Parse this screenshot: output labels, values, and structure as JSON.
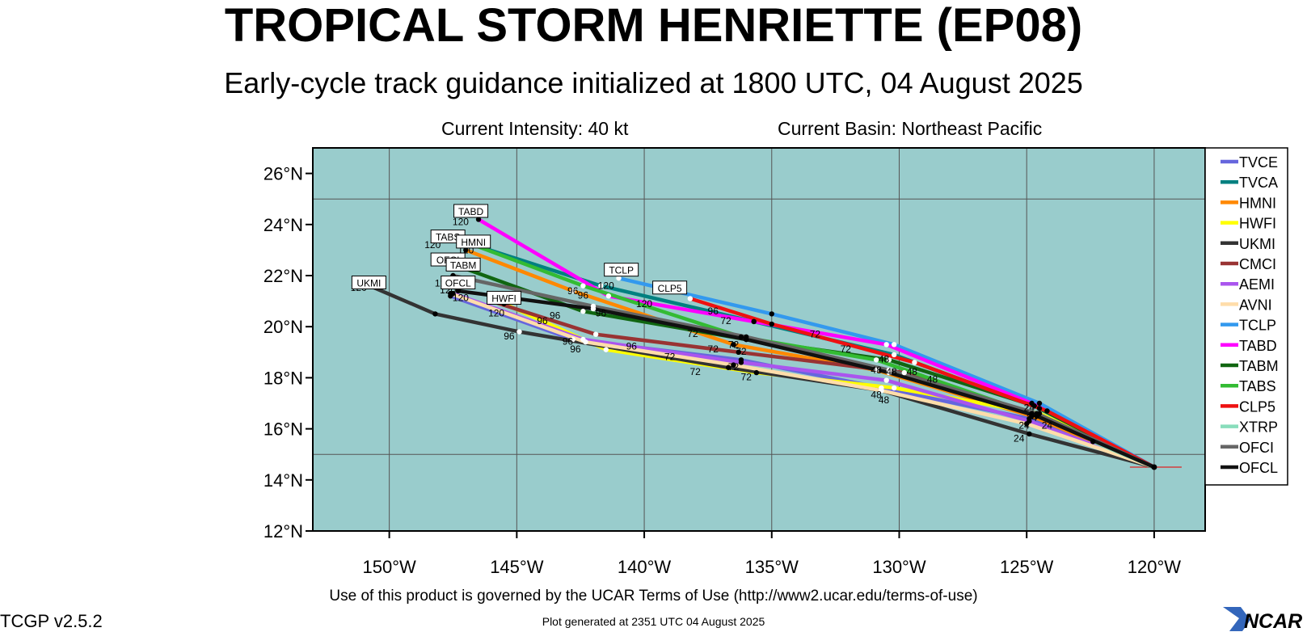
{
  "title": "TROPICAL STORM HENRIETTE (EP08)",
  "subtitle": "Early-cycle track guidance initialized at 1800 UTC, 04 August 2025",
  "current_intensity": "Current Intensity: 40 kt",
  "current_basin": "Current Basin: Northeast Pacific",
  "footer_terms": "Use of this product is governed by the UCAR Terms of Use (http://www2.ucar.edu/terms-of-use)",
  "version": "TCGP v2.5.2",
  "generated": "Plot generated at 2351 UTC   04 August 2025",
  "logo_text": "NCAR",
  "colors": {
    "ocean": "#99cccc",
    "grid": "#555555",
    "start_line": "#dd2222"
  },
  "chart_data": {
    "type": "line",
    "title": "TROPICAL STORM HENRIETTE (EP08)",
    "xlabel": "",
    "ylabel": "",
    "xlim": [
      -153,
      -118
    ],
    "ylim": [
      12,
      27
    ],
    "grid": true,
    "legend_position": "right",
    "x_ticks": [
      {
        "value": -150,
        "label": "150°W"
      },
      {
        "value": -145,
        "label": "145°W"
      },
      {
        "value": -140,
        "label": "140°W"
      },
      {
        "value": -135,
        "label": "135°W"
      },
      {
        "value": -130,
        "label": "130°W"
      },
      {
        "value": -125,
        "label": "125°W"
      },
      {
        "value": -120,
        "label": "120°W"
      }
    ],
    "y_ticks": [
      {
        "value": 12,
        "label": "12°N"
      },
      {
        "value": 14,
        "label": "14°N"
      },
      {
        "value": 16,
        "label": "16°N"
      },
      {
        "value": 18,
        "label": "18°N"
      },
      {
        "value": 20,
        "label": "20°N"
      },
      {
        "value": 22,
        "label": "22°N"
      },
      {
        "value": 24,
        "label": "24°N"
      },
      {
        "value": 26,
        "label": "26°N"
      }
    ],
    "start": {
      "lon": -120.0,
      "lat": 14.5
    },
    "series": [
      {
        "name": "TVCE",
        "color": "#6666dd",
        "points": [
          [
            -120.0,
            14.5
          ],
          [
            -124.9,
            16.4
          ],
          [
            -130.7,
            17.6
          ],
          [
            -136.2,
            18.7
          ],
          [
            -142.8,
            19.5
          ],
          [
            -147.6,
            21.2
          ]
        ]
      },
      {
        "name": "TVCA",
        "color": "#008080",
        "points": [
          [
            -120.0,
            14.5
          ],
          [
            -124.5,
            16.8
          ],
          [
            -130.2,
            18.9
          ],
          [
            -135.7,
            20.2
          ],
          [
            -141.7,
            21.6
          ],
          [
            -147.3,
            23.4
          ]
        ]
      },
      {
        "name": "HMNI",
        "color": "#ff8800",
        "points": [
          [
            -120.0,
            14.5
          ],
          [
            -124.8,
            16.5
          ],
          [
            -130.9,
            18.3
          ],
          [
            -136.5,
            19.3
          ],
          [
            -142.8,
            21.4
          ],
          [
            -147.0,
            23.0
          ]
        ],
        "labels": [
          {
            "hr": "48",
            "lon": -130.9,
            "lat": 18.3
          },
          {
            "hr": "72",
            "lon": -136.5,
            "lat": 19.3
          },
          {
            "hr": "96",
            "lon": -142.8,
            "lat": 21.4
          },
          {
            "hr": "120",
            "lon": -147.0,
            "lat": 23.0
          }
        ]
      },
      {
        "name": "HWFI",
        "color": "#ffff00",
        "points": [
          [
            -120.0,
            14.5
          ],
          [
            -124.5,
            16.6
          ],
          [
            -130.2,
            17.6
          ],
          [
            -135.6,
            18.2
          ],
          [
            -141.5,
            19.1
          ],
          [
            -145.5,
            20.9
          ]
        ]
      },
      {
        "name": "UKMI",
        "color": "#333333",
        "points": [
          [
            -120.0,
            14.5
          ],
          [
            -124.9,
            15.8
          ],
          [
            -130.7,
            17.5
          ],
          [
            -136.7,
            18.4
          ],
          [
            -144.9,
            19.8
          ],
          [
            -148.2,
            20.5
          ],
          [
            -151.0,
            21.7
          ]
        ]
      },
      {
        "name": "CMCI",
        "color": "#993333",
        "points": [
          [
            -120.0,
            14.5
          ],
          [
            -124.6,
            16.5
          ],
          [
            -129.8,
            18.2
          ],
          [
            -136.3,
            19.0
          ],
          [
            -141.9,
            19.7
          ],
          [
            -146.0,
            21.0
          ]
        ]
      },
      {
        "name": "AEMI",
        "color": "#aa55ee",
        "points": [
          [
            -120.0,
            14.5
          ],
          [
            -124.9,
            16.3
          ],
          [
            -130.5,
            17.9
          ],
          [
            -136.2,
            18.6
          ],
          [
            -142.4,
            19.5
          ],
          [
            -147.5,
            21.3
          ]
        ]
      },
      {
        "name": "AVNI",
        "color": "#ffddaa",
        "points": [
          [
            -120.0,
            14.5
          ],
          [
            -125.0,
            16.2
          ],
          [
            -130.7,
            17.5
          ],
          [
            -136.5,
            18.5
          ],
          [
            -142.3,
            19.4
          ],
          [
            -147.6,
            21.3
          ]
        ]
      },
      {
        "name": "TCLP",
        "color": "#3399ee",
        "points": [
          [
            -120.0,
            14.5
          ],
          [
            -124.5,
            17.0
          ],
          [
            -130.2,
            19.3
          ],
          [
            -135.0,
            20.5
          ],
          [
            -141.0,
            21.9
          ]
        ],
        "labels": [
          {
            "hr": "72",
            "lon": -133.3,
            "lat": 19.7
          },
          {
            "hr": "120",
            "lon": -141.5,
            "lat": 21.6
          }
        ]
      },
      {
        "name": "TABD",
        "color": "#ff00ff",
        "points": [
          [
            -120.0,
            14.5
          ],
          [
            -124.8,
            17.0
          ],
          [
            -130.5,
            19.3
          ],
          [
            -135.7,
            20.2
          ],
          [
            -141.4,
            21.2
          ],
          [
            -146.5,
            24.2
          ]
        ],
        "labels": [
          {
            "hr": "120",
            "lon": -147.2,
            "lat": 24.1
          }
        ]
      },
      {
        "name": "TABM",
        "color": "#116611",
        "points": [
          [
            -120.0,
            14.5
          ],
          [
            -124.7,
            16.9
          ],
          [
            -130.4,
            18.7
          ],
          [
            -136.0,
            19.5
          ],
          [
            -142.4,
            20.6
          ],
          [
            -147.1,
            22.3
          ]
        ]
      },
      {
        "name": "TABS",
        "color": "#33bb33",
        "points": [
          [
            -120.0,
            14.5
          ],
          [
            -124.8,
            16.6
          ],
          [
            -130.9,
            18.7
          ],
          [
            -136.2,
            19.6
          ],
          [
            -142.4,
            21.6
          ],
          [
            -147.5,
            23.5
          ]
        ],
        "labels": [
          {
            "hr": "120",
            "lon": -148.3,
            "lat": 23.2
          }
        ]
      },
      {
        "name": "CLP5",
        "color": "#ee1111",
        "points": [
          [
            -120.0,
            14.5
          ],
          [
            -124.2,
            16.7
          ],
          [
            -129.4,
            18.6
          ],
          [
            -135.0,
            20.1
          ],
          [
            -138.2,
            21.1
          ]
        ],
        "labels": [
          {
            "hr": "96",
            "lon": -137.3,
            "lat": 20.6
          },
          {
            "hr": "120",
            "lon": -140.0,
            "lat": 20.9
          }
        ]
      },
      {
        "name": "XTRP",
        "color": "#88ddbb",
        "points": [
          [
            -120.0,
            14.5
          ],
          [
            -122.4,
            15.5
          ]
        ]
      },
      {
        "name": "OFCI",
        "color": "#666666",
        "points": [
          [
            -120.0,
            14.5
          ],
          [
            -124.6,
            16.6
          ],
          [
            -130.4,
            18.3
          ],
          [
            -136.0,
            19.6
          ],
          [
            -142.0,
            20.8
          ],
          [
            -147.5,
            22.0
          ]
        ],
        "labels": [
          {
            "hr": "120",
            "lon": -147.9,
            "lat": 21.7
          }
        ]
      },
      {
        "name": "OFCL",
        "color": "#111111",
        "points": [
          [
            -120.0,
            14.5
          ],
          [
            -124.6,
            16.5
          ],
          [
            -130.4,
            18.2
          ],
          [
            -136.0,
            19.5
          ],
          [
            -142.0,
            20.7
          ],
          [
            -147.3,
            21.4
          ]
        ]
      }
    ],
    "end_labels": [
      {
        "text": "UKMI",
        "lon": -150.8,
        "lat": 21.7
      },
      {
        "text": "TABD",
        "lon": -146.8,
        "lat": 24.5
      },
      {
        "text": "TABS",
        "lon": -147.7,
        "lat": 23.5
      },
      {
        "text": "HMNI",
        "lon": -146.7,
        "lat": 23.3
      },
      {
        "text": "OFCI",
        "lon": -147.7,
        "lat": 22.6
      },
      {
        "text": "TABM",
        "lon": -147.1,
        "lat": 22.4
      },
      {
        "text": "OFCL",
        "lon": -147.3,
        "lat": 21.7
      },
      {
        "text": "HWFI",
        "lon": -145.5,
        "lat": 21.1
      },
      {
        "text": "TCLP",
        "lon": -140.9,
        "lat": 22.2
      },
      {
        "text": "CLP5",
        "lon": -139.0,
        "lat": 21.5
      }
    ],
    "hour_labels": [
      {
        "text": "120",
        "lon": -151.2,
        "lat": 21.4
      },
      {
        "text": "120",
        "lon": -147.5,
        "lat": 22.2
      },
      {
        "text": "120",
        "lon": -147.7,
        "lat": 21.3
      },
      {
        "text": "120",
        "lon": -147.2,
        "lat": 21.0
      },
      {
        "text": "120",
        "lon": -145.8,
        "lat": 20.4
      },
      {
        "text": "96",
        "lon": -145.3,
        "lat": 19.5
      },
      {
        "text": "96",
        "lon": -144.0,
        "lat": 20.1
      },
      {
        "text": "96",
        "lon": -143.5,
        "lat": 20.3
      },
      {
        "text": "96",
        "lon": -142.4,
        "lat": 21.1
      },
      {
        "text": "96",
        "lon": -141.7,
        "lat": 20.4
      },
      {
        "text": "96",
        "lon": -140.5,
        "lat": 19.1
      },
      {
        "text": "96",
        "lon": -143.0,
        "lat": 19.3
      },
      {
        "text": "96",
        "lon": -142.7,
        "lat": 19.0
      },
      {
        "text": "72",
        "lon": -139.0,
        "lat": 18.7
      },
      {
        "text": "72",
        "lon": -138.1,
        "lat": 19.6
      },
      {
        "text": "72",
        "lon": -137.3,
        "lat": 19.0
      },
      {
        "text": "72",
        "lon": -136.8,
        "lat": 20.1
      },
      {
        "text": "72",
        "lon": -136.2,
        "lat": 18.9
      },
      {
        "text": "72",
        "lon": -136.5,
        "lat": 18.3
      },
      {
        "text": "72",
        "lon": -138.0,
        "lat": 18.1
      },
      {
        "text": "72",
        "lon": -136.0,
        "lat": 17.9
      },
      {
        "text": "72",
        "lon": -132.1,
        "lat": 19.0
      },
      {
        "text": "48",
        "lon": -130.6,
        "lat": 18.6
      },
      {
        "text": "48",
        "lon": -129.5,
        "lat": 18.1
      },
      {
        "text": "48",
        "lon": -130.3,
        "lat": 18.1
      },
      {
        "text": "48",
        "lon": -130.9,
        "lat": 17.2
      },
      {
        "text": "48",
        "lon": -130.6,
        "lat": 17.0
      },
      {
        "text": "48",
        "lon": -128.7,
        "lat": 17.8
      },
      {
        "text": "24",
        "lon": -124.9,
        "lat": 16.7
      },
      {
        "text": "24",
        "lon": -124.8,
        "lat": 16.3
      },
      {
        "text": "24",
        "lon": -125.1,
        "lat": 16.0
      },
      {
        "text": "24",
        "lon": -124.2,
        "lat": 16.0
      },
      {
        "text": "24",
        "lon": -125.3,
        "lat": 15.5
      }
    ]
  }
}
